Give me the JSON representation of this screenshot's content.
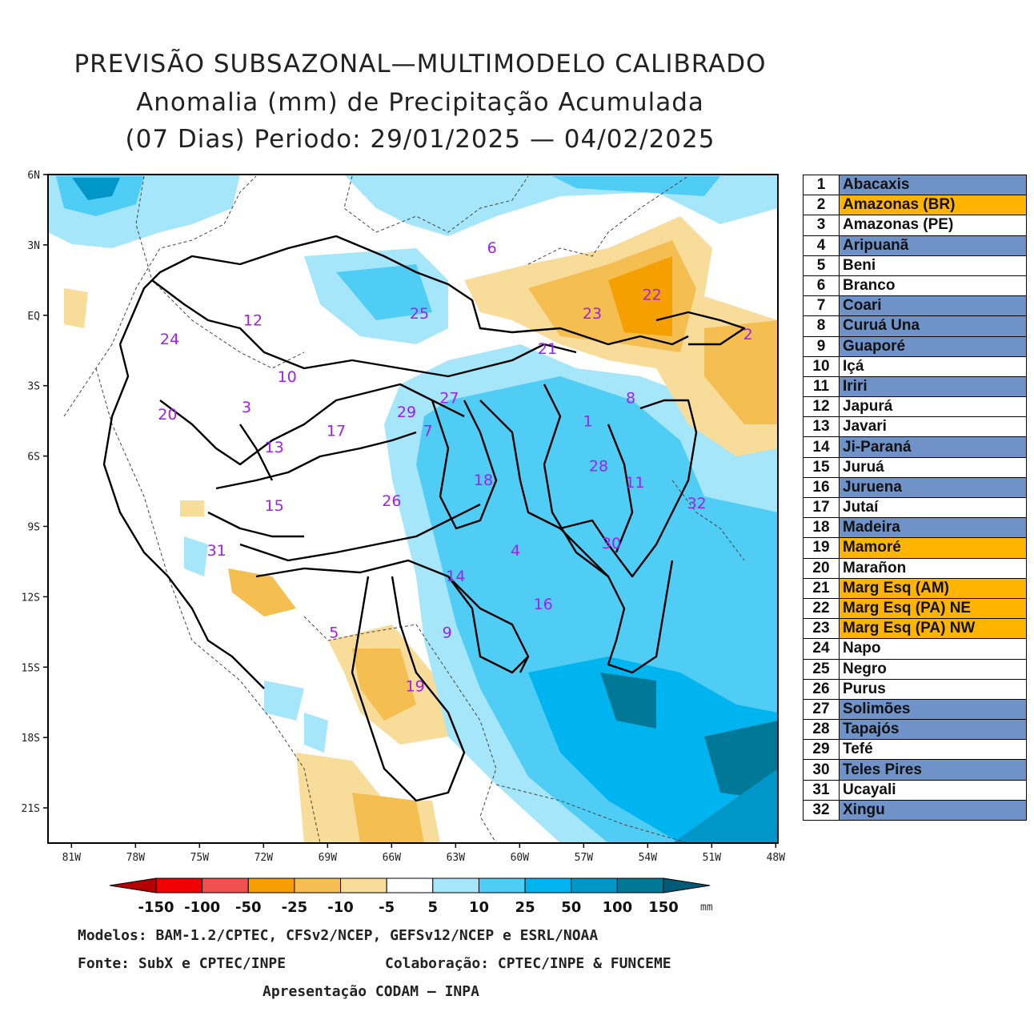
{
  "title": {
    "line1": "PREVISÃO SUBSAZONAL—MULTIMODELO CALIBRADO",
    "line2": "Anomalia (mm) de Precipitação Acumulada",
    "line3": "(07 Dias) Periodo: 29/01/2025 — 04/02/2025"
  },
  "map": {
    "lat_labels": [
      "6N",
      "3N",
      "EQ",
      "3S",
      "6S",
      "9S",
      "12S",
      "15S",
      "18S",
      "21S"
    ],
    "lon_labels": [
      "81W",
      "78W",
      "75W",
      "72W",
      "69W",
      "66W",
      "63W",
      "60W",
      "57W",
      "54W",
      "51W",
      "48W"
    ],
    "region_labels": [
      {
        "id": "1",
        "lon": -56.8,
        "lat": -4.5
      },
      {
        "id": "2",
        "lon": -49.3,
        "lat": -0.8
      },
      {
        "id": "3",
        "lon": -72.8,
        "lat": -3.9
      },
      {
        "id": "4",
        "lon": -60.2,
        "lat": -10.0
      },
      {
        "id": "5",
        "lon": -68.7,
        "lat": -13.5
      },
      {
        "id": "6",
        "lon": -61.3,
        "lat": 2.9
      },
      {
        "id": "7",
        "lon": -64.3,
        "lat": -4.9
      },
      {
        "id": "8",
        "lon": -54.8,
        "lat": -3.5
      },
      {
        "id": "9",
        "lon": -63.4,
        "lat": -13.5
      },
      {
        "id": "10",
        "lon": -70.9,
        "lat": -2.6
      },
      {
        "id": "11",
        "lon": -54.6,
        "lat": -7.1
      },
      {
        "id": "12",
        "lon": -72.5,
        "lat": -0.2
      },
      {
        "id": "13",
        "lon": -71.5,
        "lat": -5.6
      },
      {
        "id": "14",
        "lon": -63.0,
        "lat": -11.1
      },
      {
        "id": "15",
        "lon": -71.5,
        "lat": -8.1
      },
      {
        "id": "16",
        "lon": -58.9,
        "lat": -12.3
      },
      {
        "id": "17",
        "lon": -68.6,
        "lat": -4.9
      },
      {
        "id": "18",
        "lon": -61.7,
        "lat": -7.0
      },
      {
        "id": "19",
        "lon": -64.9,
        "lat": -15.8
      },
      {
        "id": "20",
        "lon": -76.5,
        "lat": -4.2
      },
      {
        "id": "21",
        "lon": -58.7,
        "lat": -1.4
      },
      {
        "id": "22",
        "lon": -53.8,
        "lat": 0.9
      },
      {
        "id": "23",
        "lon": -56.6,
        "lat": 0.1
      },
      {
        "id": "24",
        "lon": -76.4,
        "lat": -1.0
      },
      {
        "id": "25",
        "lon": -64.7,
        "lat": 0.1
      },
      {
        "id": "26",
        "lon": -66.0,
        "lat": -7.9
      },
      {
        "id": "27",
        "lon": -63.3,
        "lat": -3.5
      },
      {
        "id": "28",
        "lon": -56.3,
        "lat": -6.4
      },
      {
        "id": "29",
        "lon": -65.3,
        "lat": -4.1
      },
      {
        "id": "30",
        "lon": -55.7,
        "lat": -9.7
      },
      {
        "id": "31",
        "lon": -74.2,
        "lat": -10.0
      },
      {
        "id": "32",
        "lon": -51.7,
        "lat": -8.0
      }
    ],
    "region_label_color": "#a020f0"
  },
  "legend": [
    {
      "num": "1",
      "name": "Abacaxis",
      "color": "#6f93c9"
    },
    {
      "num": "2",
      "name": "Amazonas (BR)",
      "color": "#ffb400"
    },
    {
      "num": "3",
      "name": "Amazonas (PE)",
      "color": "#ffffff"
    },
    {
      "num": "4",
      "name": "Aripuanã",
      "color": "#6f93c9"
    },
    {
      "num": "5",
      "name": "Beni",
      "color": "#ffffff"
    },
    {
      "num": "6",
      "name": "Branco",
      "color": "#ffffff"
    },
    {
      "num": "7",
      "name": "Coari",
      "color": "#6f93c9"
    },
    {
      "num": "8",
      "name": "Curuá Una",
      "color": "#6f93c9"
    },
    {
      "num": "9",
      "name": "Guaporé",
      "color": "#6f93c9"
    },
    {
      "num": "10",
      "name": "Içá",
      "color": "#ffffff"
    },
    {
      "num": "11",
      "name": "Iriri",
      "color": "#6f93c9"
    },
    {
      "num": "12",
      "name": "Japurá",
      "color": "#ffffff"
    },
    {
      "num": "13",
      "name": "Javari",
      "color": "#ffffff"
    },
    {
      "num": "14",
      "name": "Ji-Paraná",
      "color": "#6f93c9"
    },
    {
      "num": "15",
      "name": "Juruá",
      "color": "#ffffff"
    },
    {
      "num": "16",
      "name": "Juruena",
      "color": "#6f93c9"
    },
    {
      "num": "17",
      "name": "Jutaí",
      "color": "#ffffff"
    },
    {
      "num": "18",
      "name": "Madeira",
      "color": "#6f93c9"
    },
    {
      "num": "19",
      "name": "Mamoré",
      "color": "#ffb400"
    },
    {
      "num": "20",
      "name": "Marañon",
      "color": "#ffffff"
    },
    {
      "num": "21",
      "name": "Marg Esq (AM)",
      "color": "#ffb400"
    },
    {
      "num": "22",
      "name": "Marg Esq (PA) NE",
      "color": "#ffb400"
    },
    {
      "num": "23",
      "name": "Marg Esq (PA) NW",
      "color": "#ffb400"
    },
    {
      "num": "24",
      "name": "Napo",
      "color": "#ffffff"
    },
    {
      "num": "25",
      "name": "Negro",
      "color": "#ffffff"
    },
    {
      "num": "26",
      "name": "Purus",
      "color": "#ffffff"
    },
    {
      "num": "27",
      "name": "Solimões",
      "color": "#6f93c9"
    },
    {
      "num": "28",
      "name": "Tapajós",
      "color": "#6f93c9"
    },
    {
      "num": "29",
      "name": "Tefé",
      "color": "#ffffff"
    },
    {
      "num": "30",
      "name": "Teles Pires",
      "color": "#6f93c9"
    },
    {
      "num": "31",
      "name": "Ucayali",
      "color": "#ffffff"
    },
    {
      "num": "32",
      "name": "Xingu",
      "color": "#6f93c9"
    }
  ],
  "colorbar": {
    "labels": [
      "-150",
      "-100",
      "-50",
      "-25",
      "-10",
      "-5",
      "5",
      "10",
      "25",
      "50",
      "100",
      "150"
    ],
    "unit": "mm",
    "colors": [
      "#b40000",
      "#f00000",
      "#f05050",
      "#f5a000",
      "#f5be50",
      "#f8dc9a",
      "#ffffff",
      "#a5e6fa",
      "#50cdf5",
      "#00b4f0",
      "#0096c8",
      "#007896",
      "#005a78"
    ]
  },
  "footer": {
    "line1": "Modelos: BAM-1.2/CPTEC, CFSv2/NCEP, GEFSv12/NCEP e ESRL/NOAA",
    "line2a": "Fonte: SubX e CPTEC/INPE",
    "line2b": "Colaboração: CPTEC/INPE & FUNCEME",
    "line3": "Apresentação CODAM — INPA"
  }
}
